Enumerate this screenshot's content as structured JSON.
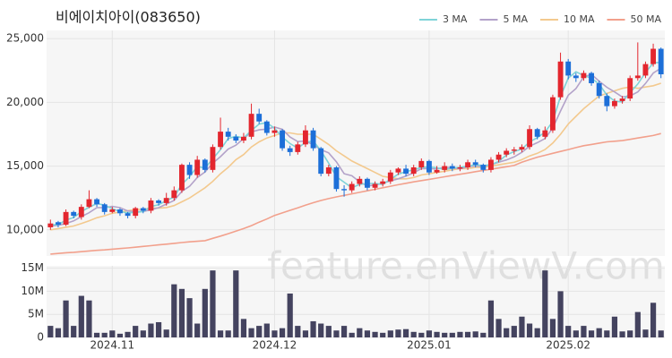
{
  "chart_data": {
    "type": "candlestick",
    "title": "비에이치아이(083650)",
    "watermark": "feature.enViewV.com",
    "grid": true,
    "legend": "top-right",
    "up_color": "#e3262e",
    "down_color": "#1d6fd8",
    "categories": [
      null,
      null,
      null,
      null,
      null,
      null,
      null,
      null,
      "2024.11",
      null,
      null,
      null,
      null,
      null,
      null,
      null,
      null,
      null,
      null,
      null,
      null,
      null,
      null,
      null,
      null,
      null,
      null,
      null,
      null,
      "2024.12",
      null,
      null,
      null,
      null,
      null,
      null,
      null,
      null,
      null,
      null,
      null,
      null,
      null,
      null,
      null,
      null,
      null,
      null,
      null,
      "2025.01",
      null,
      null,
      null,
      null,
      null,
      null,
      null,
      null,
      null,
      null,
      null,
      null,
      null,
      null,
      null,
      null,
      null,
      "2025.02",
      null,
      null,
      null,
      null,
      null,
      null,
      null,
      null,
      null,
      null,
      null,
      null
    ],
    "open": [
      10200,
      10600,
      10400,
      11400,
      11000,
      11800,
      12400,
      12000,
      11400,
      11600,
      11300,
      11100,
      11700,
      11500,
      12300,
      12100,
      12500,
      13100,
      15100,
      14300,
      15500,
      14700,
      16500,
      17700,
      17300,
      17000,
      17300,
      19100,
      18500,
      17600,
      17800,
      16400,
      16100,
      16700,
      17800,
      16400,
      14400,
      14900,
      13200,
      13100,
      13600,
      14000,
      13300,
      13600,
      13800,
      14500,
      14800,
      14400,
      14900,
      15400,
      14500,
      14700,
      15000,
      14800,
      14900,
      15300,
      15100,
      14700,
      15500,
      15900,
      16200,
      16300,
      16500,
      17900,
      17300,
      17800,
      20400,
      23200,
      22100,
      21900,
      22300,
      21500,
      20500,
      19700,
      20100,
      20300,
      21900,
      22100,
      23000,
      24200
    ],
    "high": [
      10800,
      10700,
      11600,
      11500,
      12000,
      13100,
      12500,
      12100,
      11800,
      11700,
      11400,
      11800,
      11800,
      12500,
      12400,
      12900,
      13400,
      15200,
      15300,
      15800,
      15600,
      16700,
      18800,
      18000,
      17500,
      17600,
      19900,
      19500,
      18600,
      18100,
      17900,
      16600,
      16900,
      18200,
      18000,
      16500,
      15100,
      15000,
      13500,
      13800,
      14200,
      14100,
      13800,
      14000,
      14700,
      14900,
      15100,
      15100,
      15600,
      15500,
      15000,
      15300,
      15200,
      15100,
      15500,
      15500,
      15200,
      15700,
      16100,
      16400,
      16500,
      16700,
      18200,
      18000,
      18100,
      20600,
      23900,
      23400,
      22300,
      22500,
      22400,
      21700,
      20700,
      20300,
      20500,
      22100,
      24700,
      23200,
      24600,
      24300
    ],
    "low": [
      10000,
      10200,
      10300,
      10900,
      10800,
      11700,
      11800,
      11200,
      11300,
      11100,
      10900,
      10900,
      11300,
      11300,
      11900,
      11900,
      12300,
      12900,
      14000,
      14100,
      14500,
      14500,
      16300,
      17000,
      16800,
      16800,
      17100,
      18300,
      17400,
      17300,
      16200,
      15800,
      15900,
      16500,
      16200,
      14200,
      14200,
      13000,
      12600,
      12900,
      13400,
      13100,
      13100,
      13400,
      13600,
      14300,
      14200,
      14200,
      14700,
      14300,
      14400,
      14500,
      14600,
      14600,
      14700,
      14900,
      14500,
      14500,
      15300,
      15700,
      15900,
      16100,
      16300,
      17100,
      17100,
      17600,
      20200,
      21800,
      21600,
      21700,
      21300,
      20300,
      19300,
      19500,
      19900,
      20100,
      21700,
      21900,
      22800,
      21900
    ],
    "close": [
      10500,
      10400,
      11400,
      11100,
      11800,
      12400,
      12000,
      11400,
      11600,
      11300,
      11100,
      11700,
      11500,
      12300,
      12100,
      12500,
      13100,
      15100,
      14300,
      15500,
      14700,
      16500,
      17700,
      17300,
      17000,
      17300,
      19100,
      18500,
      17600,
      17800,
      16400,
      16100,
      16700,
      17800,
      16400,
      14400,
      14900,
      13200,
      13100,
      13600,
      14000,
      13300,
      13600,
      13800,
      14500,
      14800,
      14400,
      14900,
      15400,
      14500,
      14700,
      15000,
      14800,
      14900,
      15300,
      15100,
      14700,
      15500,
      15900,
      16200,
      16300,
      16500,
      17900,
      17300,
      17800,
      20400,
      23200,
      22100,
      21900,
      22300,
      21500,
      20500,
      19700,
      20100,
      20300,
      21900,
      22100,
      23000,
      24200,
      22200
    ],
    "ylim": [
      7950,
      25640
    ],
    "yticks": [
      {
        "value": 10000,
        "label": "10,000"
      },
      {
        "value": 15000,
        "label": "15,000"
      },
      {
        "value": 20000,
        "label": "20,000"
      },
      {
        "value": 25000,
        "label": "25,000"
      }
    ],
    "series": [
      {
        "name": "3 MA",
        "color": "#7fd3d8",
        "values": [
          10400,
          10400,
          10767,
          10967,
          11433,
          11767,
          12067,
          11933,
          11667,
          11433,
          11333,
          11367,
          11433,
          11833,
          11967,
          12300,
          12567,
          13567,
          14167,
          14967,
          14833,
          15567,
          16300,
          17167,
          17333,
          17200,
          17800,
          18300,
          18400,
          17967,
          17267,
          16767,
          16400,
          16867,
          16967,
          16200,
          15233,
          14167,
          13733,
          13300,
          13567,
          13633,
          13633,
          13567,
          13967,
          14367,
          14567,
          14700,
          14900,
          14933,
          14867,
          14733,
          14833,
          14900,
          15000,
          15100,
          15033,
          15100,
          15367,
          15867,
          16133,
          16333,
          16900,
          17233,
          17667,
          18500,
          20467,
          21900,
          22400,
          22100,
          21900,
          21433,
          20567,
          20100,
          20033,
          20767,
          21433,
          22333,
          23100,
          23133
        ]
      },
      {
        "name": "5 MA",
        "color": "#b3a2c9",
        "values": [
          10300,
          10350,
          10500,
          10700,
          11040,
          11340,
          11740,
          11740,
          11840,
          11740,
          11480,
          11420,
          11440,
          11580,
          11740,
          12020,
          12300,
          13020,
          13420,
          14100,
          14540,
          15220,
          15740,
          16340,
          16640,
          17160,
          17680,
          17840,
          17900,
          18060,
          17880,
          17280,
          16920,
          16960,
          16680,
          16280,
          16040,
          15340,
          14400,
          14240,
          13760,
          13440,
          13520,
          13660,
          13840,
          14000,
          14220,
          14480,
          14800,
          14800,
          14780,
          14900,
          14880,
          14780,
          14940,
          15020,
          14960,
          15100,
          15300,
          15480,
          15720,
          16080,
          16560,
          16840,
          17160,
          17980,
          19320,
          20560,
          21080,
          21980,
          22200,
          21660,
          21180,
          20820,
          20420,
          20500,
          20820,
          21480,
          22300,
          22680
        ]
      },
      {
        "name": "10 MA",
        "color": "#f3c98e",
        "values": [
          10000,
          10100,
          10200,
          10300,
          10500,
          10700,
          10950,
          11100,
          11300,
          11400,
          11500,
          11600,
          11600,
          11700,
          11700,
          11750,
          11900,
          12200,
          12500,
          12900,
          13300,
          13800,
          14400,
          14900,
          15500,
          15900,
          16500,
          16900,
          17200,
          17400,
          17600,
          17600,
          17500,
          17500,
          17500,
          17100,
          16700,
          16200,
          15800,
          15400,
          15100,
          14800,
          14500,
          14200,
          14100,
          14000,
          14000,
          14100,
          14300,
          14400,
          14500,
          14600,
          14700,
          14800,
          14800,
          14900,
          14900,
          15000,
          15100,
          15200,
          15300,
          15500,
          15800,
          16000,
          16300,
          16800,
          17500,
          18300,
          18900,
          19500,
          20000,
          20500,
          20700,
          20900,
          21100,
          21200,
          21100,
          21200,
          21300,
          21500
        ]
      },
      {
        "name": "50 MA",
        "color": "#f2a08c",
        "values": [
          8100,
          8150,
          8200,
          8240,
          8290,
          8340,
          8390,
          8430,
          8480,
          8530,
          8580,
          8640,
          8700,
          8760,
          8820,
          8880,
          8940,
          9000,
          9060,
          9100,
          9150,
          9330,
          9510,
          9700,
          9900,
          10100,
          10330,
          10600,
          10850,
          11130,
          11330,
          11530,
          11730,
          11930,
          12130,
          12300,
          12450,
          12580,
          12700,
          12820,
          12940,
          13060,
          13180,
          13300,
          13420,
          13540,
          13650,
          13760,
          13860,
          13960,
          14060,
          14160,
          14260,
          14360,
          14460,
          14560,
          14660,
          14750,
          14850,
          14950,
          15050,
          15300,
          15500,
          15700,
          15850,
          16000,
          16150,
          16300,
          16450,
          16600,
          16700,
          16800,
          16900,
          16950,
          17000,
          17100,
          17200,
          17300,
          17400,
          17550
        ]
      }
    ],
    "volume": {
      "color": "#44435f",
      "ylim": [
        0,
        15500000
      ],
      "yticks": [
        {
          "value": 0,
          "label": "0"
        },
        {
          "value": 5000000,
          "label": "5M"
        },
        {
          "value": 10000000,
          "label": "10M"
        },
        {
          "value": 15000000,
          "label": "15M"
        }
      ],
      "values": [
        2500000,
        2000000,
        8000000,
        2500000,
        9000000,
        8000000,
        1000000,
        1000000,
        1500000,
        800000,
        1200000,
        2500000,
        1500000,
        3000000,
        3300000,
        1700000,
        11500000,
        10500000,
        8500000,
        3000000,
        10500000,
        14500000,
        1500000,
        1500000,
        14500000,
        4000000,
        2000000,
        2500000,
        3000000,
        1500000,
        2000000,
        9500000,
        2500000,
        1500000,
        3500000,
        3000000,
        2500000,
        1500000,
        2500000,
        1000000,
        2000000,
        1500000,
        1200000,
        1000000,
        1500000,
        1700000,
        1800000,
        1200000,
        1000000,
        1500000,
        1200000,
        1000000,
        1000000,
        1200000,
        1200000,
        1300000,
        1000000,
        8000000,
        4000000,
        2000000,
        2500000,
        4500000,
        3000000,
        2000000,
        14500000,
        4000000,
        10000000,
        2500000,
        1500000,
        2500000,
        1500000,
        2000000,
        1500000,
        4500000,
        1300000,
        1500000,
        5500000,
        1700000,
        7500000,
        1500000
      ]
    }
  }
}
